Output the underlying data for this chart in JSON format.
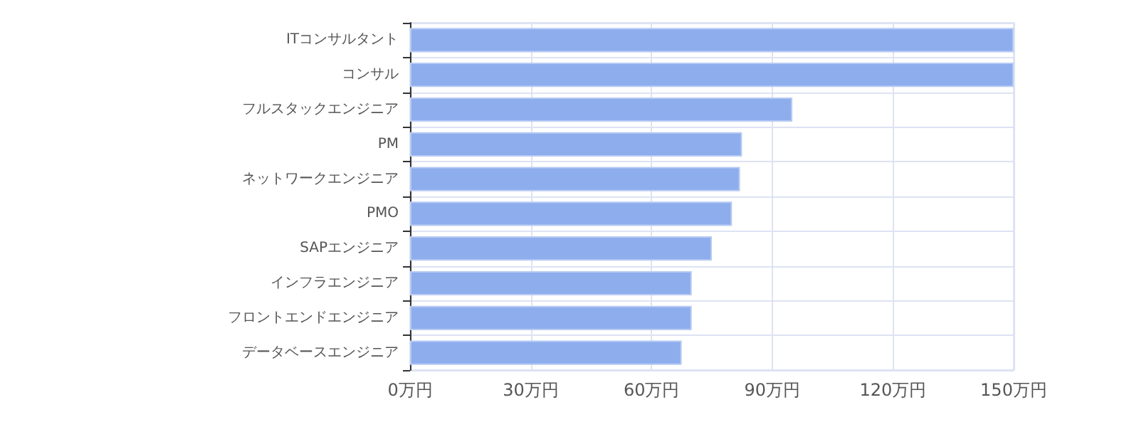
{
  "chart_data": {
    "type": "bar",
    "orientation": "horizontal",
    "categories": [
      "ITコンサルタント",
      "コンサル",
      "フルスタックエンジニア",
      "PM",
      "ネットワークエンジニア",
      "PMO",
      "SAPエンジニア",
      "インフラエンジニア",
      "フロントエンドエンジニア",
      "データベースエンジニア"
    ],
    "values": [
      150,
      150,
      95,
      82.5,
      82,
      80,
      75,
      70,
      70,
      67.5
    ],
    "color": "#8eaded",
    "xlim": [
      0,
      150
    ],
    "xticks": [
      {
        "value": 0,
        "label": "0万円"
      },
      {
        "value": 30,
        "label": "30万円"
      },
      {
        "value": 60,
        "label": "60万円"
      },
      {
        "value": 90,
        "label": "90万円"
      },
      {
        "value": 120,
        "label": "120万円"
      },
      {
        "value": 150,
        "label": "150万円"
      }
    ],
    "grid": true
  }
}
